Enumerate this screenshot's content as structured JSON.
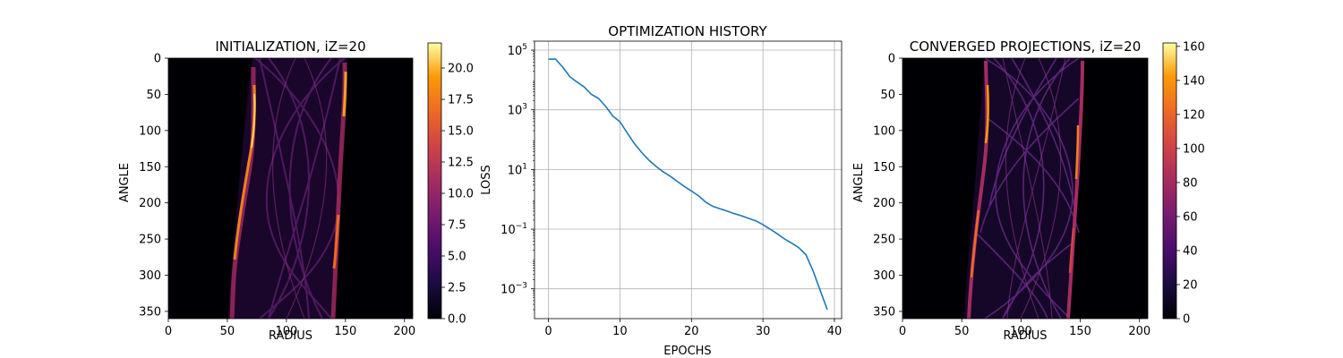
{
  "chart_data": [
    {
      "type": "heatmap",
      "title": "INITIALIZATION, iZ=20",
      "xlabel": "RADIUS",
      "ylabel": "ANGLE",
      "xlim": [
        0,
        207
      ],
      "ylim": [
        360,
        0
      ],
      "x_ticks": [
        "0",
        "50",
        "100",
        "150",
        "200"
      ],
      "y_ticks": [
        "0",
        "50",
        "100",
        "150",
        "200",
        "250",
        "300",
        "350"
      ],
      "colormap": "inferno",
      "colorbar": {
        "range": [
          0,
          22
        ],
        "ticks": [
          "0.0",
          "2.5",
          "5.0",
          "7.5",
          "10.0",
          "12.5",
          "15.0",
          "17.5",
          "20.0"
        ]
      }
    },
    {
      "type": "line",
      "title": "OPTIMIZATION HISTORY",
      "xlabel": "EPOCHS",
      "ylabel": "LOSS",
      "yscale": "log",
      "grid": true,
      "xlim": [
        -1.95,
        41
      ],
      "ylim": [
        0.0001,
        200000
      ],
      "x_ticks": [
        "0",
        "10",
        "20",
        "30",
        "40"
      ],
      "y_tick_values": [
        0.001,
        0.1,
        10,
        1000,
        100000
      ],
      "series": [
        {
          "color": "#1f77b4",
          "x": [
            0,
            1,
            2,
            3,
            4,
            5,
            6,
            7,
            8,
            9,
            10,
            11,
            12,
            13,
            14,
            15,
            16,
            17,
            18,
            19,
            20,
            21,
            22,
            23,
            24,
            25,
            26,
            27,
            28,
            29,
            30,
            31,
            32,
            33,
            34,
            35,
            36,
            37,
            38,
            39
          ],
          "y": [
            50000,
            50000,
            27000,
            13000,
            8500,
            5800,
            3300,
            2400,
            1300,
            620,
            400,
            170,
            75,
            38,
            21,
            13,
            8.5,
            6,
            4,
            2.7,
            1.9,
            1.3,
            0.8,
            0.58,
            0.48,
            0.4,
            0.33,
            0.28,
            0.23,
            0.19,
            0.14,
            0.1,
            0.07,
            0.047,
            0.034,
            0.024,
            0.014,
            0.004,
            0.0009,
            0.0002
          ]
        }
      ]
    },
    {
      "type": "heatmap",
      "title": "CONVERGED PROJECTIONS, iZ=20",
      "xlabel": "RADIUS",
      "ylabel": "ANGLE",
      "xlim": [
        0,
        207
      ],
      "ylim": [
        360,
        0
      ],
      "x_ticks": [
        "0",
        "50",
        "100",
        "150",
        "200"
      ],
      "y_ticks": [
        "0",
        "50",
        "100",
        "150",
        "200",
        "250",
        "300",
        "350"
      ],
      "colormap": "inferno",
      "colorbar": {
        "range": [
          0,
          162
        ],
        "ticks": [
          "0",
          "20",
          "40",
          "60",
          "80",
          "100",
          "120",
          "140",
          "160"
        ]
      }
    }
  ]
}
